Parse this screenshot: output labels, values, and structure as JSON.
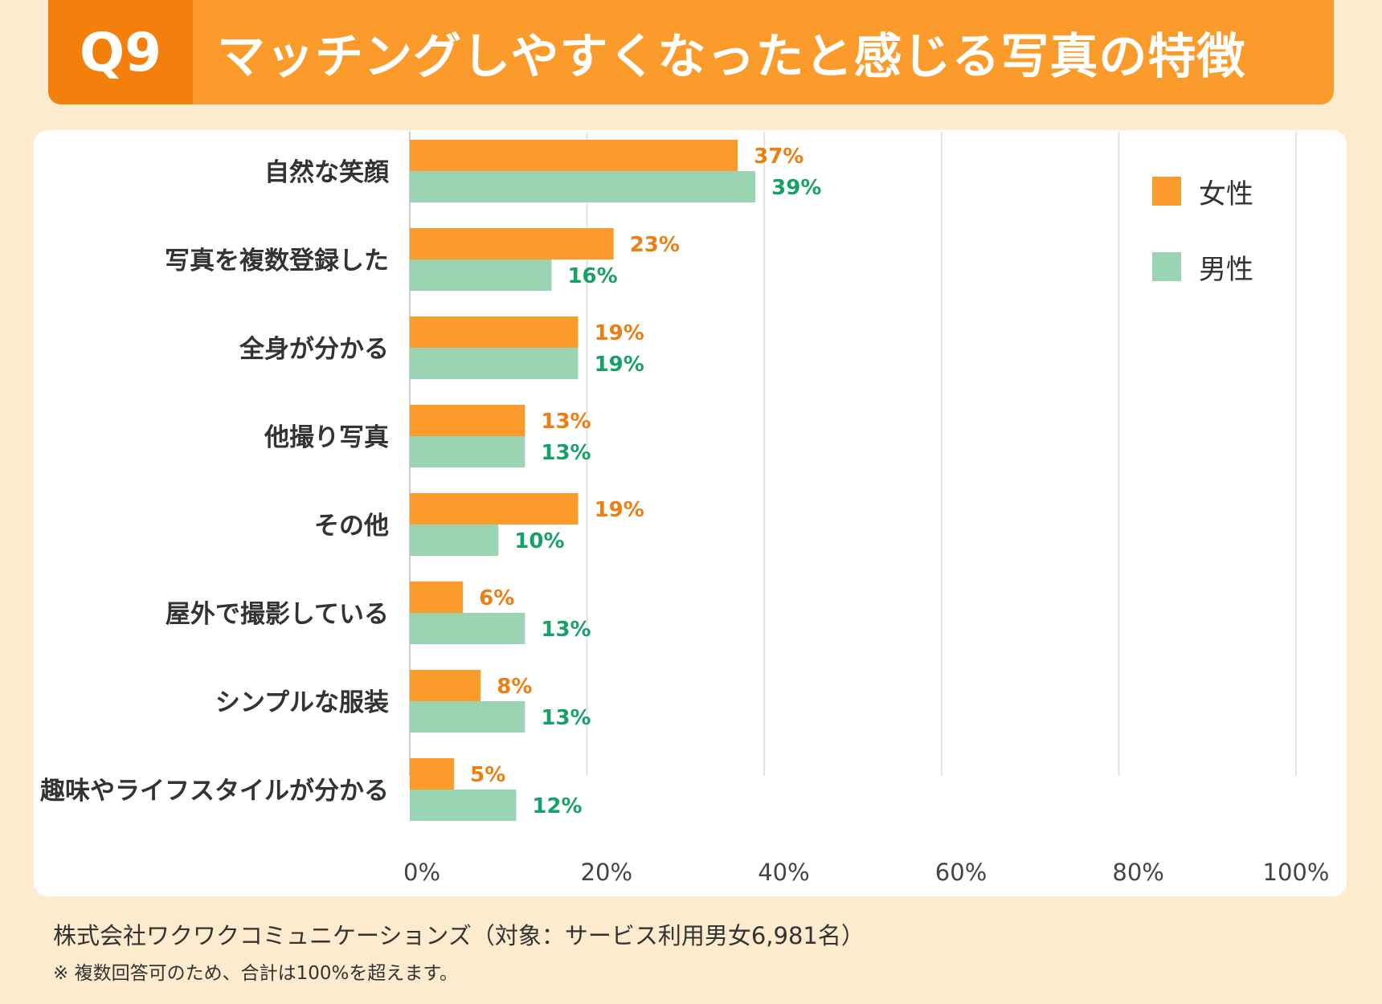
{
  "header": {
    "badge": "Q9",
    "title": "マッチングしやすくなったと感じる写真の特徴"
  },
  "colors": {
    "female": "#fb9b2b",
    "male": "#9bd4b3",
    "female_text": "#ee7d12",
    "male_text": "#17a067",
    "grid": "#e3e3e3"
  },
  "chart_data": {
    "type": "bar",
    "orientation": "horizontal",
    "title": "マッチングしやすくなったと感じる写真の特徴",
    "categories": [
      "自然な笑顔",
      "写真を複数登録した",
      "全身が分かる",
      "他撮り写真",
      "その他",
      "屋外で撮影している",
      "シンプルな服装",
      "趣味やライフスタイルが分かる"
    ],
    "series": [
      {
        "name": "女性",
        "values": [
          37,
          23,
          19,
          13,
          19,
          6,
          8,
          5
        ],
        "labels": [
          "37%",
          "23%",
          "19%",
          "13%",
          "19%",
          "6%",
          "8%",
          "5%"
        ]
      },
      {
        "name": "男性",
        "values": [
          39,
          16,
          19,
          13,
          10,
          13,
          13,
          12
        ],
        "labels": [
          "39%",
          "16%",
          "19%",
          "13%",
          "10%",
          "13%",
          "13%",
          "12%"
        ]
      }
    ],
    "xlim": [
      0,
      100
    ],
    "xticks": [
      "0%",
      "20%",
      "40%",
      "60%",
      "80%",
      "100%"
    ],
    "grid": true,
    "legend": "top-right"
  },
  "source": "株式会社ワクワクコミュニケーションズ（対象：サービス利用男女6,981名）",
  "note": "※ 複数回答可のため、合計は100%を超えます。"
}
